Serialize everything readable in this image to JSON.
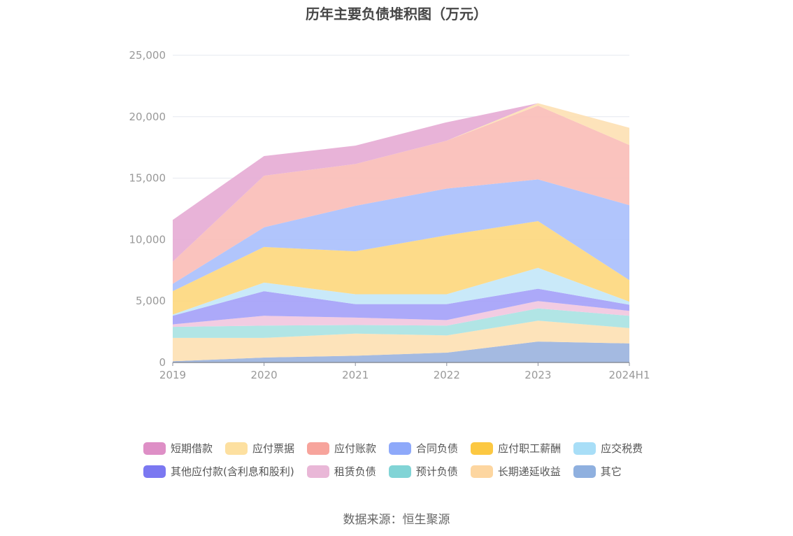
{
  "chart_data": {
    "type": "area",
    "title": "历年主要负债堆积图（万元）",
    "categories": [
      "2019",
      "2020",
      "2021",
      "2022",
      "2023",
      "2024H1"
    ],
    "yticks": [
      "0",
      "5,000",
      "10,000",
      "15,000",
      "20,000",
      "25,000"
    ],
    "ylim": [
      0,
      25000
    ],
    "stacked": true,
    "grid": true,
    "legend_position": "bottom",
    "series": [
      {
        "name": "其它",
        "color": "#9ab3de",
        "values": [
          100,
          400,
          550,
          800,
          1700,
          1550
        ]
      },
      {
        "name": "长期递延收益",
        "color": "#fde0b3",
        "values": [
          1900,
          1600,
          1800,
          1400,
          1700,
          1250
        ]
      },
      {
        "name": "预计负债",
        "color": "#a8e2e2",
        "values": [
          900,
          1000,
          700,
          800,
          1000,
          1000
        ]
      },
      {
        "name": "租赁负债",
        "color": "#f1c6df",
        "values": [
          200,
          800,
          600,
          450,
          600,
          400
        ]
      },
      {
        "name": "其他应付款(含利息和股利)",
        "color": "#a3a0f8",
        "values": [
          700,
          2000,
          1100,
          1300,
          1000,
          500
        ]
      },
      {
        "name": "应交税费",
        "color": "#c3e7f8",
        "values": [
          100,
          700,
          800,
          800,
          1700,
          250
        ]
      },
      {
        "name": "应付职工薪酬",
        "color": "#fdd77c",
        "values": [
          1900,
          2900,
          3500,
          4800,
          3800,
          1750
        ]
      },
      {
        "name": "合同负债",
        "color": "#a9bffc",
        "values": [
          600,
          1600,
          3700,
          3800,
          3400,
          6100
        ]
      },
      {
        "name": "应付账款",
        "color": "#f9bcb7",
        "values": [
          1800,
          4200,
          3400,
          3900,
          6000,
          4900
        ]
      },
      {
        "name": "应付票据",
        "color": "#fde0b3",
        "values": [
          0,
          0,
          0,
          0,
          200,
          1400
        ]
      },
      {
        "name": "短期借款",
        "color": "#e5abd4",
        "values": [
          3400,
          1600,
          1500,
          1500,
          0,
          0
        ]
      }
    ]
  },
  "legend": {
    "row1": [
      {
        "label": "短期借款",
        "color": "#de8fc6"
      },
      {
        "label": "应付票据",
        "color": "#fde0a0"
      },
      {
        "label": "应付账款",
        "color": "#f7a49c"
      },
      {
        "label": "合同负债",
        "color": "#8ea9fa"
      },
      {
        "label": "应付职工薪酬",
        "color": "#fcc842"
      },
      {
        "label": "应交税费",
        "color": "#a8def7"
      }
    ],
    "row2": [
      {
        "label": "其他应付款(含利息和股利)",
        "color": "#7b78f1"
      },
      {
        "label": "租赁负债",
        "color": "#e9b7d7"
      },
      {
        "label": "预计负债",
        "color": "#81d4d6"
      },
      {
        "label": "长期递延收益",
        "color": "#fdd6a0"
      },
      {
        "label": "其它",
        "color": "#8fb0df"
      }
    ]
  },
  "source": "数据来源：恒生聚源"
}
